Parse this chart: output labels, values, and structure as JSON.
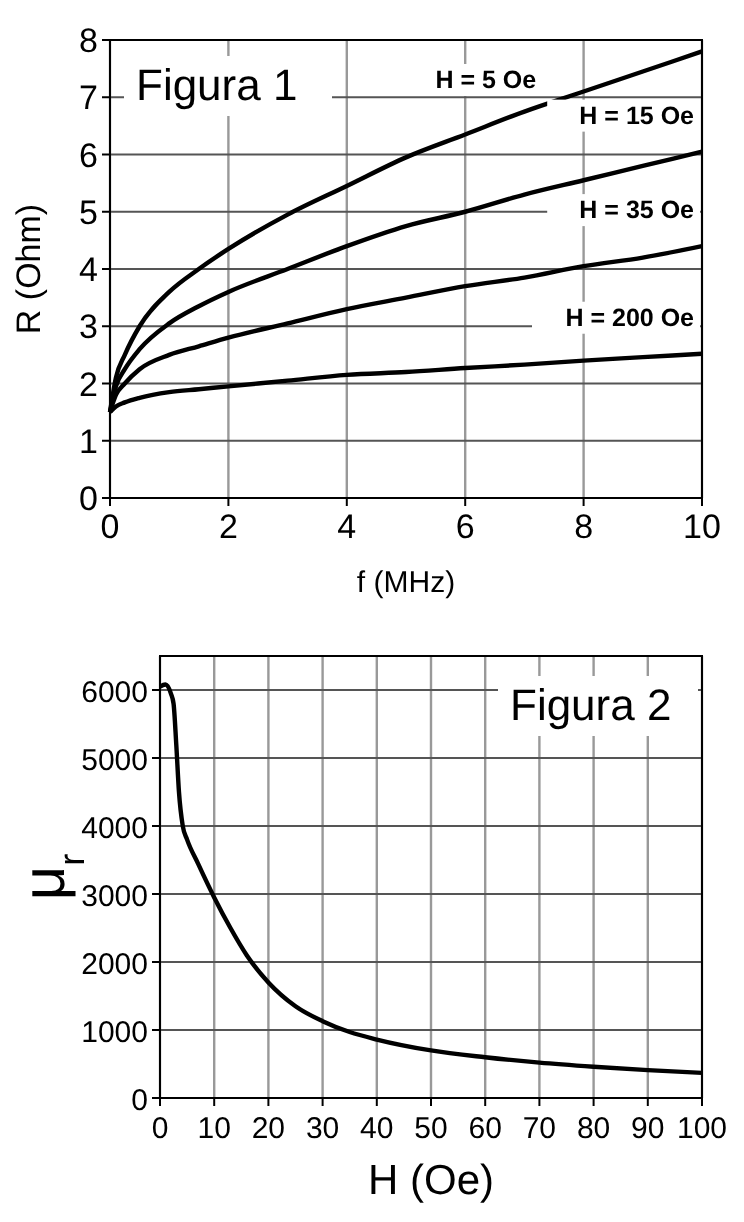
{
  "chart_data": [
    {
      "type": "line",
      "title": "Figura 1",
      "xlabel": "f (MHz)",
      "ylabel": "R (Ohm)",
      "xlim": [
        0,
        10
      ],
      "ylim": [
        0,
        8
      ],
      "xticks": [
        0,
        2,
        4,
        6,
        8,
        10
      ],
      "yticks": [
        0,
        1,
        2,
        3,
        4,
        5,
        6,
        7,
        8
      ],
      "grid": true,
      "marker": "none",
      "line_style": "solid",
      "x": [
        0,
        0.1,
        0.25,
        0.5,
        1,
        1.5,
        2,
        3,
        4,
        5,
        6,
        7,
        8,
        9,
        10
      ],
      "series": [
        {
          "name": "H = 5 Oe",
          "color": "#000000",
          "values": [
            1.5,
            2.1,
            2.5,
            3.0,
            3.6,
            4.0,
            4.35,
            4.95,
            5.45,
            5.95,
            6.35,
            6.75,
            7.1,
            7.45,
            7.8
          ]
        },
        {
          "name": "H = 15 Oe",
          "color": "#000000",
          "values": [
            1.5,
            1.95,
            2.25,
            2.6,
            3.05,
            3.35,
            3.6,
            4.0,
            4.4,
            4.75,
            5.0,
            5.3,
            5.55,
            5.8,
            6.05
          ]
        },
        {
          "name": "H = 35 Oe",
          "color": "#000000",
          "values": [
            1.5,
            1.8,
            2.0,
            2.25,
            2.5,
            2.65,
            2.8,
            3.05,
            3.3,
            3.5,
            3.7,
            3.85,
            4.05,
            4.2,
            4.4
          ]
        },
        {
          "name": "H = 200 Oe",
          "color": "#000000",
          "values": [
            1.5,
            1.6,
            1.67,
            1.75,
            1.85,
            1.9,
            1.95,
            2.05,
            2.15,
            2.2,
            2.27,
            2.33,
            2.4,
            2.46,
            2.52
          ]
        }
      ]
    },
    {
      "type": "line",
      "title": "Figura 2",
      "xlabel": "H (Oe)",
      "ylabel": "μ$_{r}$",
      "xlim": [
        0,
        100
      ],
      "ylim": [
        0,
        6500
      ],
      "xticks": [
        0,
        10,
        20,
        30,
        40,
        50,
        60,
        70,
        80,
        90,
        100
      ],
      "yticks": [
        0,
        1000,
        2000,
        3000,
        4000,
        5000,
        6000
      ],
      "grid": true,
      "marker": "none",
      "line_style": "solid",
      "x": [
        0,
        1,
        2,
        2.5,
        3,
        3.5,
        4.2,
        5,
        7,
        10,
        13,
        16,
        20,
        25,
        30,
        35,
        40,
        50,
        60,
        70,
        80,
        90,
        100
      ],
      "series": [
        {
          "color": "#000000",
          "values": [
            6050,
            6080,
            5950,
            5800,
            5200,
            4500,
            4000,
            3800,
            3450,
            2950,
            2500,
            2100,
            1700,
            1350,
            1130,
            970,
            860,
            700,
            600,
            520,
            460,
            410,
            370
          ]
        }
      ]
    }
  ]
}
